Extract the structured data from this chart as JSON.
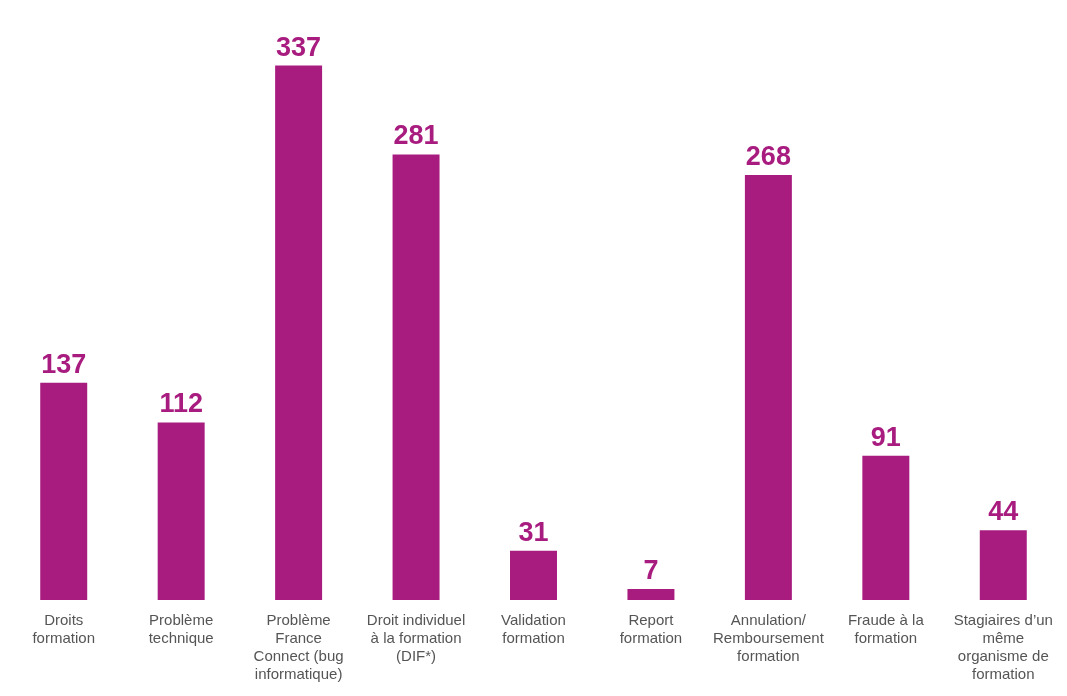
{
  "chart_data": {
    "type": "bar",
    "categories": [
      "Droits formation",
      "Problème technique",
      "Problème France Connect (bug informatique)",
      "Droit individuel à la formation (DIF*)",
      "Validation formation",
      "Report formation",
      "Annulation/ Remboursement formation",
      "Fraude à la formation",
      "Stagiaires d’un même organisme de formation"
    ],
    "values": [
      137,
      112,
      337,
      281,
      31,
      7,
      268,
      91,
      44
    ],
    "color": "#a81c7f",
    "data_labels": true,
    "grid": false,
    "legend": false
  }
}
